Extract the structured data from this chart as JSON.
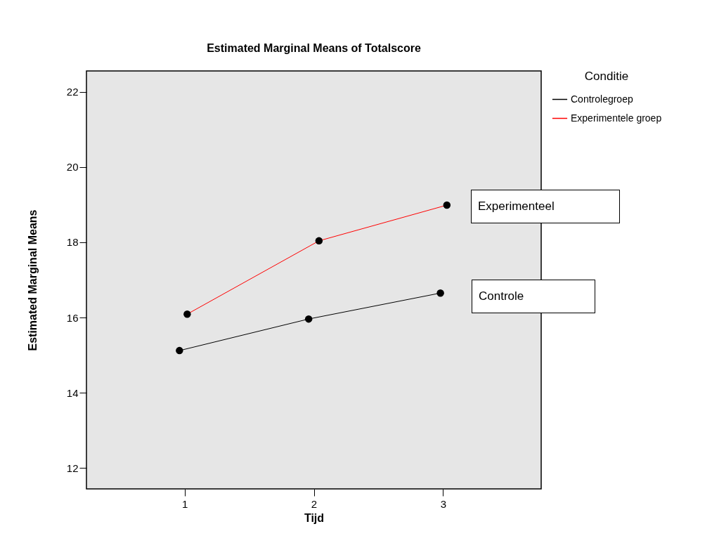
{
  "chart_data": {
    "type": "line",
    "title": "Estimated Marginal Means of Totalscore",
    "xlabel": "Tijd",
    "ylabel": "Estimated Marginal Means",
    "legend_title": "Conditie",
    "series": [
      {
        "name": "Controlegroep",
        "color": "#000000",
        "x": [
          0.96,
          1.96,
          2.98
        ],
        "values": [
          15.12,
          15.96,
          16.65
        ]
      },
      {
        "name": "Experimentele groep",
        "color": "#ff0000",
        "x": [
          1.02,
          2.04,
          3.03
        ],
        "values": [
          16.09,
          18.04,
          18.99
        ]
      }
    ],
    "xlim": [
      0.24,
      3.76
    ],
    "xticks": [
      1,
      2,
      3
    ],
    "ylim": [
      11.44,
      22.56
    ],
    "yticks": [
      12,
      14,
      16,
      18,
      20,
      22
    ],
    "annotations": [
      "Experimenteel",
      "Controle"
    ],
    "marker": "circle",
    "grid": false,
    "legend": "top right"
  }
}
